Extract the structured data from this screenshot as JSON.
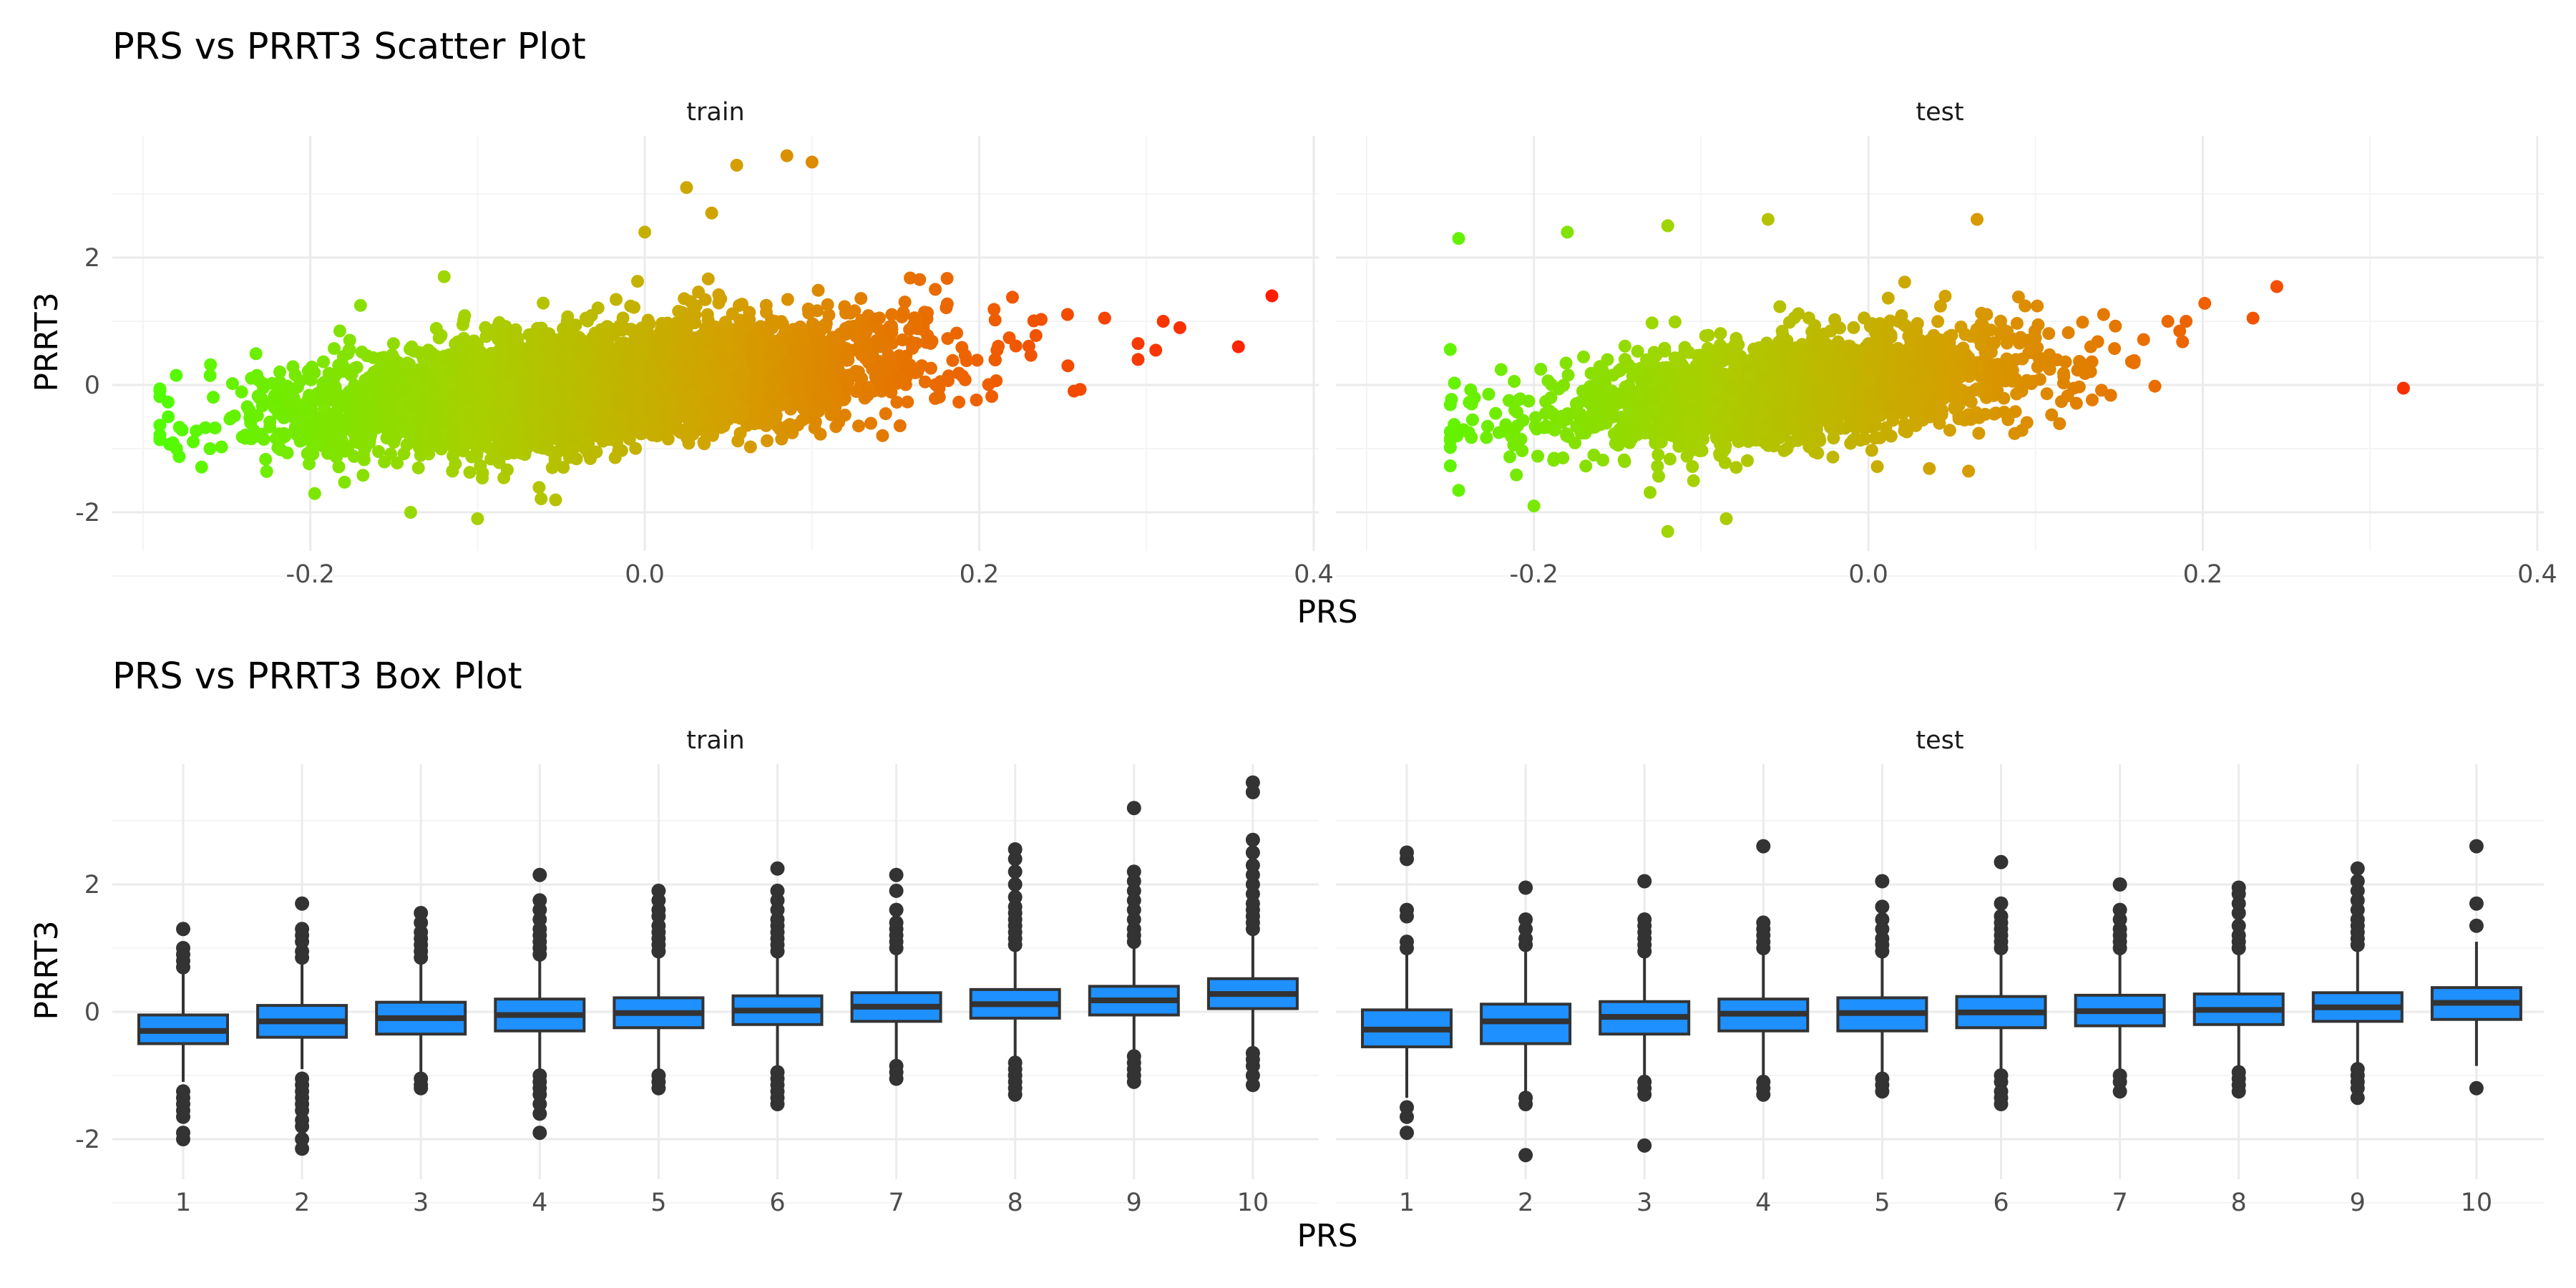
{
  "scatter_title": "PRS vs PRRT3 Scatter Plot",
  "box_title": "PRS vs PRRT3 Box Plot",
  "panels": [
    "train",
    "test"
  ],
  "xlabel": "PRS",
  "ylabel": "PRRT3",
  "chart_data": [
    {
      "type": "scatter",
      "title": "PRS vs PRRT3 Scatter Plot",
      "xlabel": "PRS",
      "ylabel": "PRRT3",
      "facets": [
        "train",
        "test"
      ],
      "xlim": [
        -0.3,
        0.4
      ],
      "ylim": [
        -2.5,
        3.7
      ],
      "x_ticks": [
        -0.2,
        0.0,
        0.2,
        0.4
      ],
      "x_tick_labels": [
        "-0.2",
        "0.0",
        "0.2",
        "0.4"
      ],
      "y_ticks": [
        -2,
        0,
        2
      ],
      "y_tick_labels": [
        "-2",
        "0",
        "2"
      ],
      "grid": true,
      "color_encoding": "point color follows PRS value, green (low) to yellow to red (high)",
      "color_scale": [
        "#4cff00",
        "#a8d000",
        "#d4a000",
        "#ee6000",
        "#ff1a00"
      ],
      "series": [
        {
          "name": "train",
          "approx_points": 5000,
          "x_range": [
            -0.29,
            0.38
          ],
          "trend": "PRRT3 rises with PRS, about 2.5 PRRT3 per 1.0 PRS",
          "notable_points": [
            {
              "x": -0.285,
              "y": -0.5
            },
            {
              "x": -0.28,
              "y": -1.0
            },
            {
              "x": -0.26,
              "y": -1.0
            },
            {
              "x": -0.17,
              "y": 1.25
            },
            {
              "x": -0.12,
              "y": 1.7
            },
            {
              "x": -0.1,
              "y": -2.1
            },
            {
              "x": -0.14,
              "y": -2.0
            },
            {
              "x": 0.0,
              "y": 2.4
            },
            {
              "x": 0.025,
              "y": 3.1
            },
            {
              "x": 0.055,
              "y": 3.45
            },
            {
              "x": 0.085,
              "y": 3.6
            },
            {
              "x": 0.1,
              "y": 3.5
            },
            {
              "x": 0.04,
              "y": 2.7
            },
            {
              "x": 0.275,
              "y": 1.05
            },
            {
              "x": 0.31,
              "y": 1.0
            },
            {
              "x": 0.32,
              "y": 0.9
            },
            {
              "x": 0.295,
              "y": 0.65
            },
            {
              "x": 0.295,
              "y": 0.4
            },
            {
              "x": 0.355,
              "y": 0.6
            },
            {
              "x": 0.375,
              "y": 1.4
            }
          ]
        },
        {
          "name": "test",
          "approx_points": 2000,
          "x_range": [
            -0.25,
            0.33
          ],
          "trend": "PRRT3 rises with PRS, about 2.5 PRRT3 per 1.0 PRS",
          "notable_points": [
            {
              "x": -0.245,
              "y": 2.3
            },
            {
              "x": -0.18,
              "y": 2.4
            },
            {
              "x": -0.12,
              "y": 2.5
            },
            {
              "x": -0.06,
              "y": 2.6
            },
            {
              "x": 0.065,
              "y": 2.6
            },
            {
              "x": -0.2,
              "y": -1.9
            },
            {
              "x": -0.12,
              "y": -2.3
            },
            {
              "x": -0.085,
              "y": -2.1
            },
            {
              "x": -0.245,
              "y": -0.75
            },
            {
              "x": 0.19,
              "y": 1.0
            },
            {
              "x": 0.23,
              "y": 1.05
            },
            {
              "x": 0.32,
              "y": -0.05
            }
          ]
        }
      ]
    },
    {
      "type": "box",
      "title": "PRS vs PRRT3 Box Plot",
      "xlabel": "PRS",
      "ylabel": "PRRT3",
      "facets": [
        "train",
        "test"
      ],
      "categories": [
        "1",
        "2",
        "3",
        "4",
        "5",
        "6",
        "7",
        "8",
        "9",
        "10"
      ],
      "ylim": [
        -2.5,
        3.7
      ],
      "y_ticks": [
        -2,
        0,
        2
      ],
      "y_tick_labels": [
        "-2",
        "0",
        "2"
      ],
      "grid": true,
      "box_fill": "#1e90ff",
      "box_edge": "#333333",
      "series": [
        {
          "name": "train",
          "boxes": [
            {
              "q1": -0.5,
              "median": -0.3,
              "q3": -0.05,
              "whisker_low": -1.1,
              "whisker_high": 0.6,
              "outliers": [
                -1.25,
                -1.35,
                -1.45,
                -1.55,
                -1.65,
                -1.9,
                -2.0,
                0.7,
                0.8,
                0.9,
                1.0,
                1.3
              ]
            },
            {
              "q1": -0.4,
              "median": -0.15,
              "q3": 0.1,
              "whisker_low": -0.9,
              "whisker_high": 0.75,
              "outliers": [
                -1.05,
                -1.15,
                -1.25,
                -1.35,
                -1.45,
                -1.55,
                -1.7,
                -1.8,
                -2.0,
                -2.15,
                0.85,
                0.95,
                1.1,
                1.2,
                1.3,
                1.7
              ]
            },
            {
              "q1": -0.35,
              "median": -0.1,
              "q3": 0.15,
              "whisker_low": -1.0,
              "whisker_high": 0.8,
              "outliers": [
                -1.05,
                -1.15,
                -1.2,
                0.85,
                0.95,
                1.05,
                1.15,
                1.25,
                1.4,
                1.55
              ]
            },
            {
              "q1": -0.3,
              "median": -0.05,
              "q3": 0.2,
              "whisker_low": -0.95,
              "whisker_high": 0.85,
              "outliers": [
                -1.0,
                -1.1,
                -1.2,
                -1.3,
                -1.45,
                -1.6,
                -1.9,
                0.9,
                1.0,
                1.1,
                1.2,
                1.3,
                1.45,
                1.6,
                1.75,
                2.15
              ]
            },
            {
              "q1": -0.25,
              "median": -0.02,
              "q3": 0.22,
              "whisker_low": -0.9,
              "whisker_high": 0.85,
              "outliers": [
                -1.0,
                -1.1,
                -1.2,
                0.95,
                1.05,
                1.15,
                1.25,
                1.35,
                1.5,
                1.6,
                1.75,
                1.9
              ]
            },
            {
              "q1": -0.2,
              "median": 0.02,
              "q3": 0.25,
              "whisker_low": -0.9,
              "whisker_high": 0.9,
              "outliers": [
                -0.95,
                -1.05,
                -1.15,
                -1.25,
                -1.35,
                -1.45,
                0.95,
                1.05,
                1.15,
                1.25,
                1.35,
                1.45,
                1.6,
                1.75,
                1.9,
                2.25
              ]
            },
            {
              "q1": -0.15,
              "median": 0.08,
              "q3": 0.3,
              "whisker_low": -0.8,
              "whisker_high": 0.95,
              "outliers": [
                -0.85,
                -0.95,
                -1.05,
                1.0,
                1.1,
                1.2,
                1.3,
                1.4,
                1.6,
                1.9,
                2.15
              ]
            },
            {
              "q1": -0.1,
              "median": 0.12,
              "q3": 0.35,
              "whisker_low": -0.75,
              "whisker_high": 1.0,
              "outliers": [
                -0.8,
                -0.9,
                -1.0,
                -1.1,
                -1.2,
                -1.3,
                1.05,
                1.15,
                1.25,
                1.35,
                1.45,
                1.55,
                1.65,
                1.8,
                2.0,
                2.2,
                2.4,
                2.55
              ]
            },
            {
              "q1": -0.05,
              "median": 0.18,
              "q3": 0.4,
              "whisker_low": -0.65,
              "whisker_high": 1.05,
              "outliers": [
                -0.7,
                -0.8,
                -0.9,
                -1.0,
                -1.1,
                1.1,
                1.2,
                1.3,
                1.45,
                1.6,
                1.75,
                1.9,
                2.05,
                2.2,
                3.2
              ]
            },
            {
              "q1": 0.05,
              "median": 0.28,
              "q3": 0.52,
              "whisker_low": -0.6,
              "whisker_high": 1.2,
              "outliers": [
                -0.65,
                -0.75,
                -0.85,
                -1.0,
                -1.15,
                1.3,
                1.4,
                1.5,
                1.6,
                1.7,
                1.85,
                2.0,
                2.15,
                2.3,
                2.5,
                2.7,
                3.45,
                3.6
              ]
            }
          ]
        },
        {
          "name": "test",
          "boxes": [
            {
              "q1": -0.55,
              "median": -0.28,
              "q3": 0.03,
              "whisker_low": -1.35,
              "whisker_high": 0.9,
              "outliers": [
                -1.5,
                -1.65,
                -1.9,
                1.0,
                1.1,
                1.5,
                1.6,
                2.4,
                2.5
              ]
            },
            {
              "q1": -0.5,
              "median": -0.15,
              "q3": 0.12,
              "whisker_low": -1.25,
              "whisker_high": 0.95,
              "outliers": [
                -1.35,
                -1.45,
                -2.25,
                1.05,
                1.15,
                1.3,
                1.45,
                1.95
              ]
            },
            {
              "q1": -0.35,
              "median": -0.08,
              "q3": 0.16,
              "whisker_low": -1.05,
              "whisker_high": 0.9,
              "outliers": [
                -1.1,
                -1.2,
                -1.3,
                -2.1,
                0.95,
                1.05,
                1.15,
                1.25,
                1.35,
                1.45,
                2.05
              ]
            },
            {
              "q1": -0.3,
              "median": -0.03,
              "q3": 0.2,
              "whisker_low": -1.0,
              "whisker_high": 0.9,
              "outliers": [
                -1.1,
                -1.2,
                -1.3,
                1.0,
                1.1,
                1.2,
                1.3,
                1.4,
                2.6
              ]
            },
            {
              "q1": -0.3,
              "median": -0.02,
              "q3": 0.22,
              "whisker_low": -1.0,
              "whisker_high": 0.9,
              "outliers": [
                -1.05,
                -1.15,
                -1.25,
                0.95,
                1.05,
                1.15,
                1.3,
                1.45,
                1.65,
                2.05
              ]
            },
            {
              "q1": -0.25,
              "median": -0.01,
              "q3": 0.24,
              "whisker_low": -0.95,
              "whisker_high": 0.95,
              "outliers": [
                -1.0,
                -1.1,
                -1.25,
                -1.35,
                -1.45,
                1.0,
                1.1,
                1.2,
                1.3,
                1.4,
                1.5,
                1.7,
                2.35
              ]
            },
            {
              "q1": -0.22,
              "median": 0.01,
              "q3": 0.26,
              "whisker_low": -0.95,
              "whisker_high": 0.95,
              "outliers": [
                -1.0,
                -1.1,
                -1.25,
                1.0,
                1.1,
                1.2,
                1.3,
                1.45,
                1.6,
                2.0
              ]
            },
            {
              "q1": -0.2,
              "median": 0.03,
              "q3": 0.28,
              "whisker_low": -0.9,
              "whisker_high": 0.95,
              "outliers": [
                -0.95,
                -1.05,
                -1.15,
                -1.25,
                1.0,
                1.1,
                1.2,
                1.35,
                1.55,
                1.7,
                1.85,
                1.95
              ]
            },
            {
              "q1": -0.15,
              "median": 0.07,
              "q3": 0.3,
              "whisker_low": -0.85,
              "whisker_high": 1.0,
              "outliers": [
                -0.9,
                -1.0,
                -1.1,
                -1.2,
                -1.35,
                1.05,
                1.15,
                1.25,
                1.35,
                1.45,
                1.6,
                1.75,
                1.9,
                2.05,
                2.25
              ]
            },
            {
              "q1": -0.12,
              "median": 0.14,
              "q3": 0.38,
              "whisker_low": -0.85,
              "whisker_high": 1.1,
              "outliers": [
                -1.2,
                1.35,
                1.7,
                2.6
              ]
            }
          ]
        }
      ]
    }
  ]
}
